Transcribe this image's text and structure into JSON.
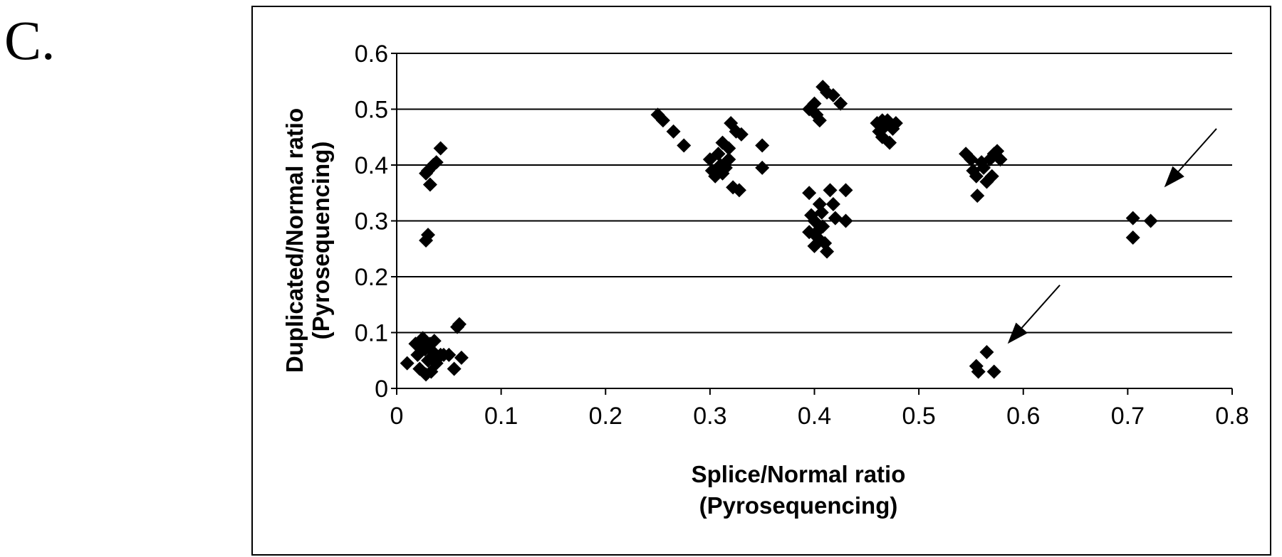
{
  "panel_label": "C.",
  "chart_data": {
    "type": "scatter",
    "title": "",
    "xlabel": [
      "Splice/Normal ratio",
      "(Pyrosequencing)"
    ],
    "ylabel": [
      "Duplicated/Normal ratio",
      "(Pyrosequencing)"
    ],
    "xlim": [
      0,
      0.8
    ],
    "ylim": [
      0,
      0.6
    ],
    "x_ticks": [
      "0",
      "0.1",
      "0.2",
      "0.3",
      "0.4",
      "0.5",
      "0.6",
      "0.7",
      "0.8"
    ],
    "y_ticks": [
      "0",
      "0.1",
      "0.2",
      "0.3",
      "0.4",
      "0.5",
      "0.6"
    ],
    "grid": "horizontal",
    "marker": "diamond",
    "color": "#000000",
    "series": [
      {
        "points": [
          [
            0.03,
            0.39
          ],
          [
            0.035,
            0.4
          ],
          [
            0.038,
            0.405
          ],
          [
            0.042,
            0.43
          ],
          [
            0.032,
            0.365
          ],
          [
            0.028,
            0.385
          ],
          [
            0.03,
            0.275
          ],
          [
            0.028,
            0.265
          ],
          [
            0.01,
            0.045
          ],
          [
            0.018,
            0.08
          ],
          [
            0.02,
            0.06
          ],
          [
            0.022,
            0.035
          ],
          [
            0.025,
            0.09
          ],
          [
            0.027,
            0.07
          ],
          [
            0.028,
            0.025
          ],
          [
            0.03,
            0.05
          ],
          [
            0.032,
            0.08
          ],
          [
            0.035,
            0.065
          ],
          [
            0.038,
            0.045
          ],
          [
            0.04,
            0.055
          ],
          [
            0.042,
            0.06
          ],
          [
            0.045,
            0.06
          ],
          [
            0.05,
            0.06
          ],
          [
            0.055,
            0.035
          ],
          [
            0.058,
            0.11
          ],
          [
            0.06,
            0.115
          ],
          [
            0.062,
            0.055
          ],
          [
            0.033,
            0.03
          ],
          [
            0.025,
            0.075
          ],
          [
            0.036,
            0.085
          ],
          [
            0.25,
            0.49
          ],
          [
            0.255,
            0.48
          ],
          [
            0.265,
            0.46
          ],
          [
            0.275,
            0.435
          ],
          [
            0.3,
            0.41
          ],
          [
            0.302,
            0.39
          ],
          [
            0.305,
            0.38
          ],
          [
            0.308,
            0.42
          ],
          [
            0.31,
            0.4
          ],
          [
            0.312,
            0.44
          ],
          [
            0.315,
            0.395
          ],
          [
            0.318,
            0.41
          ],
          [
            0.32,
            0.475
          ],
          [
            0.322,
            0.36
          ],
          [
            0.325,
            0.46
          ],
          [
            0.328,
            0.355
          ],
          [
            0.33,
            0.455
          ],
          [
            0.312,
            0.385
          ],
          [
            0.318,
            0.43
          ],
          [
            0.35,
            0.435
          ],
          [
            0.35,
            0.395
          ],
          [
            0.395,
            0.5
          ],
          [
            0.4,
            0.51
          ],
          [
            0.402,
            0.49
          ],
          [
            0.405,
            0.48
          ],
          [
            0.408,
            0.54
          ],
          [
            0.412,
            0.53
          ],
          [
            0.418,
            0.525
          ],
          [
            0.425,
            0.51
          ],
          [
            0.395,
            0.35
          ],
          [
            0.397,
            0.31
          ],
          [
            0.4,
            0.3
          ],
          [
            0.402,
            0.28
          ],
          [
            0.403,
            0.27
          ],
          [
            0.405,
            0.33
          ],
          [
            0.408,
            0.29
          ],
          [
            0.41,
            0.26
          ],
          [
            0.412,
            0.245
          ],
          [
            0.415,
            0.355
          ],
          [
            0.418,
            0.33
          ],
          [
            0.42,
            0.305
          ],
          [
            0.395,
            0.28
          ],
          [
            0.4,
            0.255
          ],
          [
            0.407,
            0.315
          ],
          [
            0.43,
            0.355
          ],
          [
            0.43,
            0.3
          ],
          [
            0.46,
            0.475
          ],
          [
            0.462,
            0.46
          ],
          [
            0.465,
            0.45
          ],
          [
            0.468,
            0.47
          ],
          [
            0.47,
            0.48
          ],
          [
            0.472,
            0.44
          ],
          [
            0.475,
            0.465
          ],
          [
            0.478,
            0.475
          ],
          [
            0.465,
            0.48
          ],
          [
            0.545,
            0.42
          ],
          [
            0.55,
            0.41
          ],
          [
            0.552,
            0.39
          ],
          [
            0.555,
            0.38
          ],
          [
            0.556,
            0.345
          ],
          [
            0.56,
            0.405
          ],
          [
            0.562,
            0.395
          ],
          [
            0.565,
            0.37
          ],
          [
            0.568,
            0.41
          ],
          [
            0.57,
            0.38
          ],
          [
            0.572,
            0.42
          ],
          [
            0.575,
            0.425
          ],
          [
            0.578,
            0.41
          ],
          [
            0.705,
            0.305
          ],
          [
            0.705,
            0.27
          ],
          [
            0.722,
            0.3
          ],
          [
            0.555,
            0.04
          ],
          [
            0.557,
            0.03
          ],
          [
            0.565,
            0.065
          ],
          [
            0.572,
            0.03
          ]
        ]
      }
    ],
    "annotations": [
      {
        "type": "arrow",
        "from": [
          0.785,
          0.465
        ],
        "to": [
          0.735,
          0.36
        ]
      },
      {
        "type": "arrow",
        "from": [
          0.635,
          0.185
        ],
        "to": [
          0.585,
          0.08
        ]
      }
    ]
  }
}
